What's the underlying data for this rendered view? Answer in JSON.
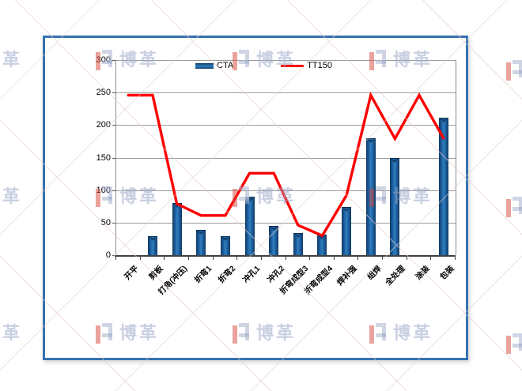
{
  "watermark": {
    "brand_text": "博革"
  },
  "chart_data": {
    "type": "bar",
    "title": "",
    "xlabel": "",
    "ylabel": "",
    "categories": [
      "开平",
      "剪板",
      "打角(冲压)",
      "折弯1",
      "折弯2",
      "冲孔1",
      "冲孔2",
      "折弯成型3",
      "折弯成型4",
      "焊补强",
      "组焊",
      "全处理",
      "涂装",
      "包装"
    ],
    "series": [
      {
        "name": "CTA",
        "type": "bar",
        "color": "#1F5C99",
        "values": [
          0,
          28,
          79,
          38,
          28,
          89,
          44,
          33,
          30,
          73,
          179,
          148,
          0,
          210
        ]
      },
      {
        "name": "TT150",
        "type": "line",
        "color": "#FE0100",
        "values": [
          246,
          246,
          79,
          61,
          61,
          126,
          126,
          46,
          30,
          92,
          246,
          179,
          246,
          180
        ]
      }
    ],
    "ylim": [
      0,
      300
    ],
    "yticks": [
      0,
      50,
      100,
      150,
      200,
      250,
      300
    ],
    "grid": true,
    "legend_position": "top-center"
  }
}
